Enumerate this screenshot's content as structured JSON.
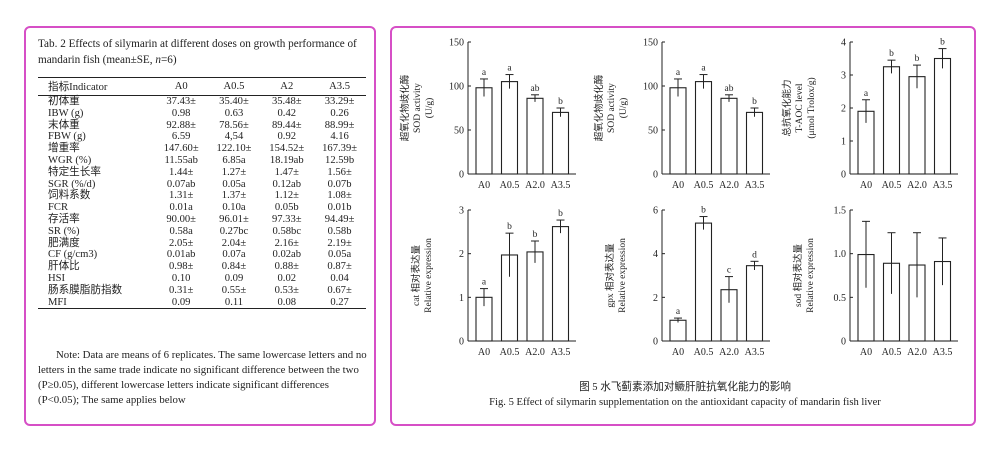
{
  "table": {
    "caption_prefix": "Tab. 2   Effects of silymarin at different doses on growth performance of mandarin fish (mean±SE, ",
    "caption_n": "n",
    "caption_suffix": "=6)",
    "headers": [
      "指标Indicator",
      "A0",
      "A0.5",
      "A2",
      "A3.5"
    ],
    "rows": [
      [
        "初体重",
        "37.43±",
        "35.40±",
        "35.48±",
        "33.29±"
      ],
      [
        "IBW (g)",
        "0.98",
        "0.63",
        "0.42",
        "0.26"
      ],
      [
        "末体重",
        "92.88±",
        "78.56±",
        "89.44±",
        "88.99±"
      ],
      [
        "FBW (g)",
        "6.59",
        "4,54",
        "0.92",
        "4.16"
      ],
      [
        "增重率",
        "147.60±",
        "122.10±",
        "154.52±",
        "167.39±"
      ],
      [
        "WGR (%)",
        "11.55ab",
        "6.85a",
        "18.19ab",
        "12.59b"
      ],
      [
        "特定生长率",
        "1.44±",
        "1.27±",
        "1.47±",
        "1.56±"
      ],
      [
        "SGR (%/d)",
        "0.07ab",
        "0.05a",
        "0.12ab",
        "0.07b"
      ],
      [
        "饲料系数",
        "1.31±",
        "1.37±",
        "1.12±",
        "1.08±"
      ],
      [
        "FCR",
        "0.01a",
        "0.10a",
        "0.05b",
        "0.01b"
      ],
      [
        "存活率",
        "90.00±",
        "96.01±",
        "97.33±",
        "94.49±"
      ],
      [
        "SR (%)",
        "0.58a",
        "0.27bc",
        "0.58bc",
        "0.58b"
      ],
      [
        "肥满度",
        "2.05±",
        "2.04±",
        "2.16±",
        "2.19±"
      ],
      [
        "CF (g/cm3)",
        "0.01ab",
        "0.07a",
        "0.02ab",
        "0.05a"
      ],
      [
        "肝体比",
        "0.98±",
        "0.84±",
        "0.88±",
        "0.87±"
      ],
      [
        "HSI",
        "0.10",
        "0.09",
        "0.02",
        "0.04"
      ],
      [
        "肠系膜脂肪指数",
        "0.31±",
        "0.55±",
        "0.53±",
        "0.67±"
      ],
      [
        "MFI",
        "0.09",
        "0.11",
        "0.08",
        "0.27"
      ]
    ],
    "note": "Note: Data are means of 6 replicates. The same lowercase letters and no letters in the same trade indicate no significant difference between the two (P≥0.05), different lowercase letters indicate significant differences (P<0.05); The same applies below"
  },
  "figure": {
    "caption_cn": "图 5  水飞蓟素添加对鳜肝脏抗氧化能力的影响",
    "caption_en": "Fig. 5   Effect of silymarin supplementation on the antioxidant capacity of mandarin fish liver"
  },
  "chart_data": [
    {
      "type": "bar",
      "ylabel_cn": "超氧化物歧化酶",
      "ylabel_en": "SOD activity",
      "ylabel_unit": "(U/g)",
      "categories": [
        "A0",
        "A0.5",
        "A2.0",
        "A3.5"
      ],
      "values": [
        98,
        105,
        86,
        70
      ],
      "errors": [
        10,
        8,
        4,
        5
      ],
      "letters": [
        "a",
        "a",
        "ab",
        "b"
      ],
      "ylim": [
        0,
        150
      ],
      "yticks": [
        0,
        50,
        100,
        150
      ],
      "ytick_labels": [
        "0",
        "50",
        "100",
        "150"
      ]
    },
    {
      "type": "bar",
      "ylabel_cn": "超氧化物歧化酶",
      "ylabel_en": "SOD activity",
      "ylabel_unit": "(U/g)",
      "categories": [
        "A0",
        "A0.5",
        "A2.0",
        "A3.5"
      ],
      "values": [
        98,
        105,
        86,
        70
      ],
      "errors": [
        10,
        8,
        4,
        5
      ],
      "letters": [
        "a",
        "a",
        "ab",
        "b"
      ],
      "ylim": [
        0,
        150
      ],
      "yticks": [
        0,
        50,
        100,
        150
      ],
      "ytick_labels": [
        "0",
        "50",
        "100",
        "150"
      ]
    },
    {
      "type": "bar",
      "ylabel_cn": "总抗氧化能力",
      "ylabel_en": "T-AOC level",
      "ylabel_unit": "(μmol Trolox/g)",
      "categories": [
        "A0",
        "A0.5",
        "A2.0",
        "A3.5"
      ],
      "values": [
        1.9,
        3.25,
        2.95,
        3.5
      ],
      "errors": [
        0.35,
        0.2,
        0.35,
        0.3
      ],
      "letters": [
        "a",
        "b",
        "b",
        "b"
      ],
      "ylim": [
        0,
        4
      ],
      "yticks": [
        0,
        1,
        2,
        3,
        4
      ],
      "ytick_labels": [
        "0",
        "1",
        "2",
        "3",
        "4"
      ]
    },
    {
      "type": "bar",
      "ylabel_cn": "cat 相对表达量",
      "ylabel_en": "Relative expression",
      "ylabel_unit": "",
      "categories": [
        "A0",
        "A0.5",
        "A2.0",
        "A3.5"
      ],
      "values": [
        1.0,
        1.97,
        2.04,
        2.62
      ],
      "errors": [
        0.2,
        0.5,
        0.25,
        0.15
      ],
      "letters": [
        "a",
        "b",
        "b",
        "b"
      ],
      "ylim": [
        0,
        3
      ],
      "yticks": [
        0,
        1,
        2,
        3
      ],
      "ytick_labels": [
        "0",
        "1",
        "2",
        "3"
      ]
    },
    {
      "type": "bar",
      "ylabel_cn": "gpx 相对表达量",
      "ylabel_en": "Relative expression",
      "ylabel_unit": "",
      "categories": [
        "A0",
        "A0.5",
        "A2.0",
        "A3.5"
      ],
      "values": [
        0.95,
        5.4,
        2.35,
        3.45
      ],
      "errors": [
        0.1,
        0.3,
        0.6,
        0.2
      ],
      "letters": [
        "a",
        "b",
        "c",
        "d"
      ],
      "ylim": [
        0,
        6
      ],
      "yticks": [
        0,
        2,
        4,
        6
      ],
      "ytick_labels": [
        "0",
        "2",
        "4",
        "6"
      ]
    },
    {
      "type": "bar",
      "ylabel_cn": "sod 相对表达量",
      "ylabel_en": "Relative expression",
      "ylabel_unit": "",
      "categories": [
        "A0",
        "A0.5",
        "A2.0",
        "A3.5"
      ],
      "values": [
        0.99,
        0.89,
        0.87,
        0.91
      ],
      "errors": [
        0.38,
        0.35,
        0.37,
        0.27
      ],
      "letters": [
        "",
        "",
        "",
        ""
      ],
      "ylim": [
        0,
        1.5
      ],
      "yticks": [
        0,
        0.5,
        1,
        1.5
      ],
      "ytick_labels": [
        "0",
        "0.5",
        "1.0",
        "1.5"
      ]
    }
  ]
}
